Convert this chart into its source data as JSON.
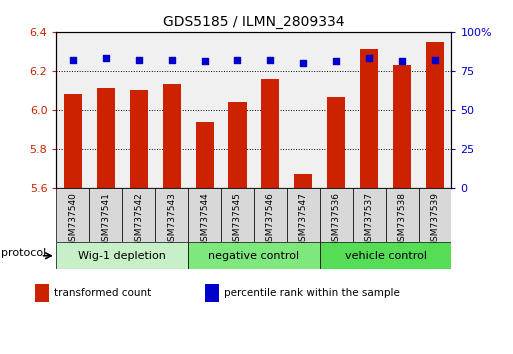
{
  "title": "GDS5185 / ILMN_2809334",
  "samples": [
    "GSM737540",
    "GSM737541",
    "GSM737542",
    "GSM737543",
    "GSM737544",
    "GSM737545",
    "GSM737546",
    "GSM737547",
    "GSM737536",
    "GSM737537",
    "GSM737538",
    "GSM737539"
  ],
  "transformed_count": [
    6.08,
    6.11,
    6.1,
    6.13,
    5.935,
    6.04,
    6.16,
    5.67,
    6.065,
    6.31,
    6.23,
    6.35
  ],
  "percentile_rank": [
    82,
    83,
    82,
    82,
    81,
    82,
    82,
    80,
    81,
    83,
    81,
    82
  ],
  "ylim_left": [
    5.6,
    6.4
  ],
  "ylim_right": [
    0,
    100
  ],
  "yticks_left": [
    5.6,
    5.8,
    6.0,
    6.2,
    6.4
  ],
  "yticks_right": [
    0,
    25,
    50,
    75,
    100
  ],
  "groups": [
    {
      "label": "Wig-1 depletion",
      "start": 0,
      "end": 4,
      "color": "#c8f0c8"
    },
    {
      "label": "negative control",
      "start": 4,
      "end": 8,
      "color": "#7ee87e"
    },
    {
      "label": "vehicle control",
      "start": 8,
      "end": 12,
      "color": "#55dd55"
    }
  ],
  "bar_color": "#cc2200",
  "dot_color": "#0000cc",
  "bar_width": 0.55,
  "tick_color_left": "#cc2200",
  "tick_color_right": "#0000cc",
  "grid_linestyle": ":",
  "protocol_label": "protocol",
  "legend_items": [
    {
      "color": "#cc2200",
      "label": "transformed count"
    },
    {
      "color": "#0000cc",
      "label": "percentile rank within the sample"
    }
  ],
  "sample_box_color": "#d8d8d8",
  "plot_bg": "#f0f0f0",
  "figsize": [
    5.13,
    3.54
  ],
  "dpi": 100
}
